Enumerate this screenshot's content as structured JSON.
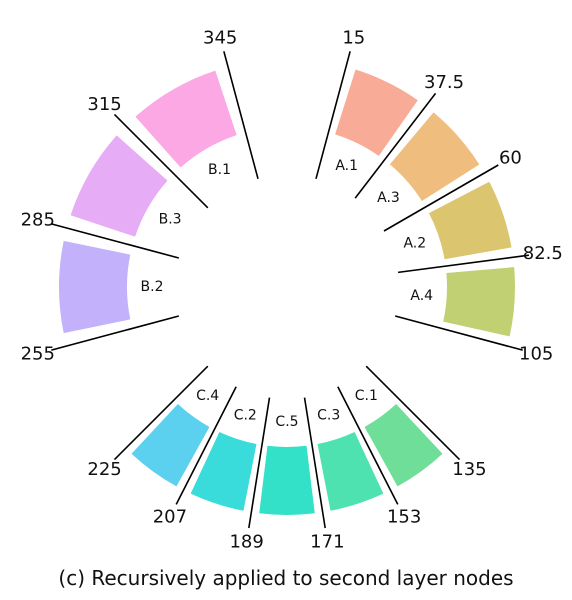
{
  "caption": "(c) Recursively applied to second layer nodes",
  "boundary_labels": [
    "345",
    "15",
    "37.5",
    "60",
    "82.5",
    "105",
    "135",
    "153",
    "171",
    "189",
    "207",
    "225",
    "255",
    "285",
    "315"
  ],
  "segments": [
    {
      "id": "A.1",
      "label": "A.1",
      "start": 15,
      "end": 37.5,
      "color": "#f8ab97"
    },
    {
      "id": "A.3",
      "label": "A.3",
      "start": 37.5,
      "end": 60,
      "color": "#efbd7e"
    },
    {
      "id": "A.2",
      "label": "A.2",
      "start": 60,
      "end": 82.5,
      "color": "#dbc56e"
    },
    {
      "id": "A.4",
      "label": "A.4",
      "start": 82.5,
      "end": 105,
      "color": "#c0d073"
    },
    {
      "id": "C.1",
      "label": "C.1",
      "start": 135,
      "end": 153,
      "color": "#6fde98"
    },
    {
      "id": "C.3",
      "label": "C.3",
      "start": 153,
      "end": 171,
      "color": "#4ee2b0"
    },
    {
      "id": "C.5",
      "label": "C.5",
      "start": 171,
      "end": 189,
      "color": "#33e0c8"
    },
    {
      "id": "C.2",
      "label": "C.2",
      "start": 189,
      "end": 207,
      "color": "#3adbdb"
    },
    {
      "id": "C.4",
      "label": "C.4",
      "start": 207,
      "end": 225,
      "color": "#5cd0ef"
    },
    {
      "id": "B.2",
      "label": "B.2",
      "start": 255,
      "end": 285,
      "color": "#c3b2fb"
    },
    {
      "id": "B.3",
      "label": "B.3",
      "start": 285,
      "end": 315,
      "color": "#e6acf5"
    },
    {
      "id": "B.1",
      "label": "B.1",
      "start": 315,
      "end": 345,
      "color": "#fba8e4"
    }
  ]
}
